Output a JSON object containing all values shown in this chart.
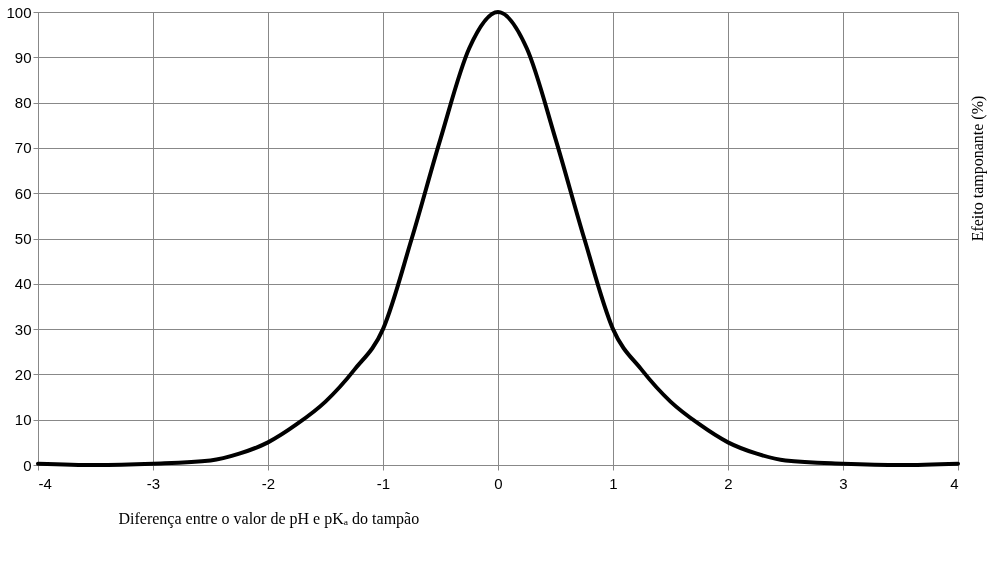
{
  "chart_data": {
    "type": "line",
    "xlabel": "Diferença entre o valor de pH e pKₐ do tampão",
    "ylabel": "Efeito tamponante (%)",
    "x": [
      -4,
      -3.5,
      -3,
      -2.5,
      -2.25,
      -2,
      -1.75,
      -1.5,
      -1.25,
      -1,
      -0.75,
      -0.5,
      -0.25,
      0,
      0.25,
      0.5,
      0.75,
      1,
      1.25,
      1.5,
      1.75,
      2,
      2.25,
      2.5,
      3,
      3.5,
      4
    ],
    "series": [
      {
        "color": "#000000",
        "values": [
          0.3,
          0,
          0.3,
          1,
          2.5,
          5,
          9,
          14,
          21,
          30,
          50,
          72,
          92,
          100,
          92,
          72,
          50,
          30,
          21,
          14,
          9,
          5,
          2.5,
          1,
          0.3,
          0,
          0.3
        ]
      }
    ],
    "xlim": [
      -4,
      4
    ],
    "xticks": [
      -4,
      -3,
      -2,
      -1,
      0,
      1,
      2,
      3,
      4
    ],
    "ylim": [
      0,
      100
    ],
    "yticks": [
      0,
      10,
      20,
      30,
      40,
      50,
      60,
      70,
      80,
      90,
      100
    ],
    "grid": true,
    "marker": "none",
    "line_style": "solid"
  }
}
